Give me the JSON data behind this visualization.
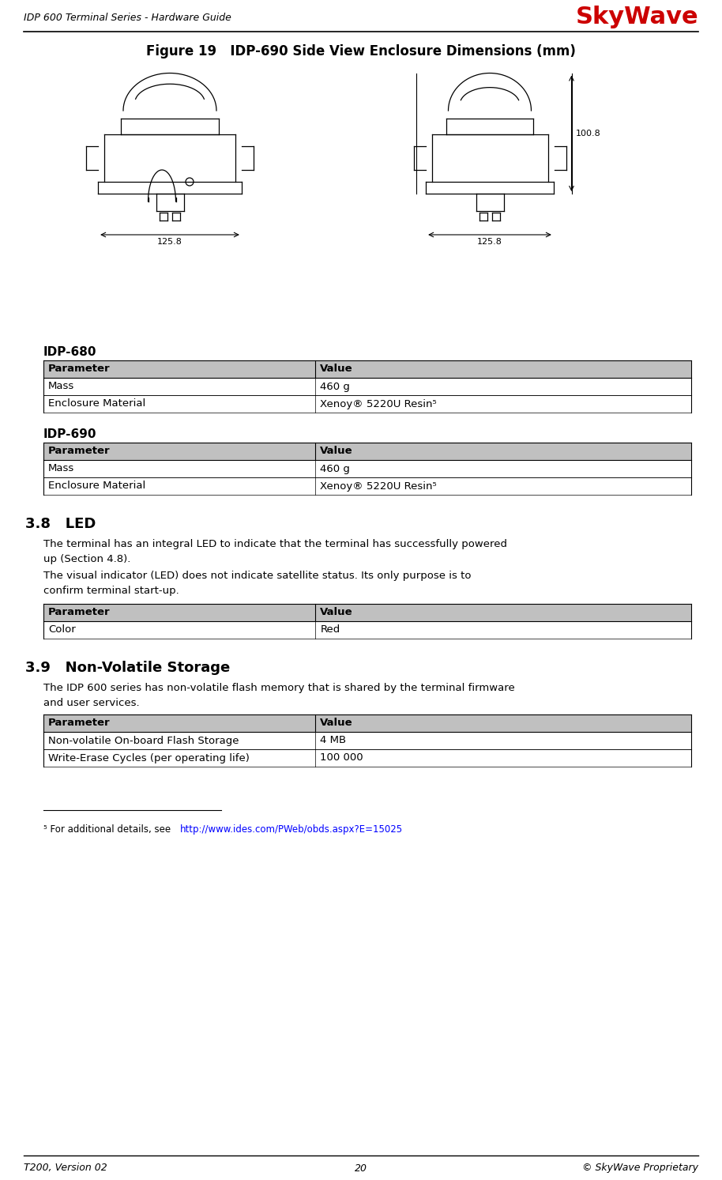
{
  "header_left": "IDP 600 Terminal Series - Hardware Guide",
  "header_right": "SkyWave",
  "footer_left": "T200, Version 02",
  "footer_center": "20",
  "footer_right": "© SkyWave Proprietary",
  "figure_title": "Figure 19   IDP-690 Side View Enclosure Dimensions (mm)",
  "idp680_title": "IDP-680",
  "idp690_title": "IDP-690",
  "table_header": [
    "Parameter",
    "Value"
  ],
  "idp680_rows": [
    [
      "Mass",
      "460 g"
    ],
    [
      "Enclosure Material",
      "Xenoy® 5220U Resin⁵"
    ]
  ],
  "idp690_rows": [
    [
      "Mass",
      "460 g"
    ],
    [
      "Enclosure Material",
      "Xenoy® 5220U Resin⁵"
    ]
  ],
  "section_38_title": "3.8   LED",
  "section_38_para1": "The terminal has an integral LED to indicate that the terminal has successfully powered\nup (Section 4.8).",
  "section_38_para2": "The visual indicator (LED) does not indicate satellite status. Its only purpose is to\nconfirm terminal start-up.",
  "led_table_rows": [
    [
      "Color",
      "Red"
    ]
  ],
  "section_39_title": "3.9   Non-Volatile Storage",
  "section_39_para": "The IDP 600 series has non-volatile flash memory that is shared by the terminal firmware\nand user services.",
  "nvs_table_rows": [
    [
      "Non-volatile On-board Flash Storage",
      "4 MB"
    ],
    [
      "Write-Erase Cycles (per operating life)",
      "100 000"
    ]
  ],
  "footnote_prefix": "⁵ For additional details, see ",
  "footnote_url": "http://www.ides.com/PWeb/obds.aspx?E=15025",
  "skywave_color": "#cc0000",
  "table_header_bg": "#c0c0c0",
  "table_row_bg": "#ffffff",
  "table_border_color": "#000000",
  "bg_color": "#ffffff"
}
